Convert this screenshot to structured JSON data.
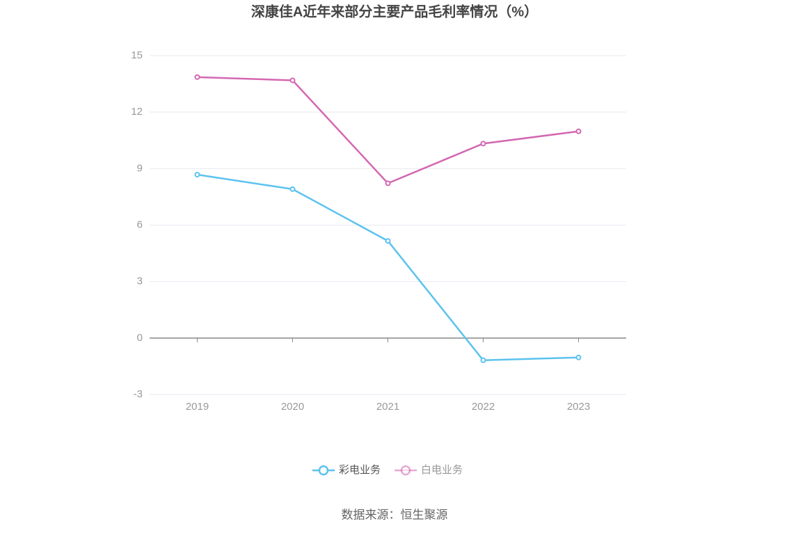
{
  "chart_data": {
    "type": "line",
    "title": "深康佳A近年来部分主要产品毛利率情况（%）",
    "categories": [
      "2019",
      "2020",
      "2021",
      "2022",
      "2023"
    ],
    "series": [
      {
        "name": "彩电业务",
        "color": "#5bc2ef",
        "values": [
          8.68,
          7.91,
          5.16,
          -1.18,
          -1.03
        ]
      },
      {
        "name": "白电业务",
        "color": "#d467b1",
        "values": [
          13.86,
          13.69,
          8.22,
          10.33,
          10.98
        ]
      }
    ],
    "ylim": [
      -3,
      15
    ],
    "yticks": [
      -3,
      0,
      3,
      6,
      9,
      12,
      15
    ],
    "grid": true,
    "source": "数据来源：恒生聚源"
  }
}
